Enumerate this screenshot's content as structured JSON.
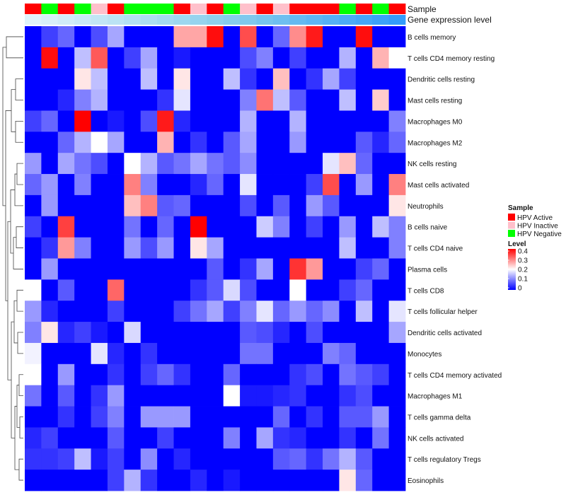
{
  "chart_data": {
    "type": "heatmap",
    "title": "",
    "annotation_titles": [
      "Sample",
      "Gene expression level"
    ],
    "rows": [
      "B cells memory",
      "T cells CD4 memory resting",
      "Dendritic cells resting",
      "Mast cells resting",
      "Macrophages M0",
      "Macrophages M2",
      "NK cells resting",
      "Mast cells activated",
      "Neutrophils",
      "B cells naive",
      "T cells CD4 naive",
      "Plasma cells",
      "T cells CD8",
      "T cells follicular helper",
      "Dendritic cells activated",
      "Monocytes",
      "T cells CD4 memory activated",
      "Macrophages M1",
      "T cells gamma delta",
      "NK cells activated",
      "T cells regulatory  Tregs",
      "Eosinophils"
    ],
    "column_samples": [
      "HPV Active",
      "HPV Negative",
      "HPV Active",
      "HPV Negative",
      "HPV Inactive",
      "HPV Active",
      "HPV Negative",
      "HPV Negative",
      "HPV Negative",
      "HPV Active",
      "HPV Inactive",
      "HPV Active",
      "HPV Negative",
      "HPV Inactive",
      "HPV Active",
      "HPV Inactive",
      "HPV Active",
      "HPV Active",
      "HPV Active",
      "HPV Negative",
      "HPV Active",
      "HPV Negative",
      "HPV Active"
    ],
    "expression_level": [
      0.02,
      0.06,
      0.1,
      0.14,
      0.18,
      0.22,
      0.26,
      0.3,
      0.34,
      0.38,
      0.42,
      0.46,
      0.5,
      0.54,
      0.58,
      0.62,
      0.66,
      0.7,
      0.74,
      0.78,
      0.82,
      0.86,
      0.9
    ],
    "values": [
      [
        0,
        0.05,
        0.08,
        0,
        0.06,
        0.13,
        0,
        0,
        0,
        0.27,
        0.27,
        0.39,
        0,
        0.34,
        0,
        0.08,
        0.29,
        0.38,
        0,
        0,
        0.39,
        0,
        0
      ],
      [
        0,
        0.39,
        0,
        0.15,
        0.33,
        0,
        0.05,
        0.13,
        0,
        0.02,
        0,
        0,
        0,
        0.06,
        0.1,
        0,
        0.05,
        0,
        0,
        0.14,
        0,
        0.26,
        0.2
      ],
      [
        0,
        0,
        0,
        0.22,
        0.15,
        0,
        0,
        0.15,
        0,
        0.22,
        0,
        0,
        0.15,
        0.04,
        0,
        0.25,
        0,
        0.04,
        0.13,
        0.05,
        0,
        0,
        0
      ],
      [
        0,
        0,
        0.03,
        0.1,
        0.14,
        0,
        0,
        0,
        0.04,
        0.18,
        0,
        0,
        0,
        0.1,
        0.31,
        0.15,
        0.07,
        0,
        0,
        0.15,
        0,
        0.24,
        0
      ],
      [
        0.05,
        0.08,
        0,
        0.4,
        0,
        0.02,
        0,
        0.06,
        0.38,
        0.03,
        0,
        0,
        0,
        0.14,
        0,
        0,
        0.14,
        0,
        0,
        0,
        0,
        0,
        0.1
      ],
      [
        0,
        0,
        0.08,
        0.14,
        0.2,
        0.13,
        0,
        0,
        0.26,
        0,
        0.04,
        0,
        0.07,
        0.13,
        0,
        0,
        0.12,
        0,
        0,
        0,
        0.07,
        0.03,
        0.08
      ],
      [
        0.12,
        0,
        0.13,
        0.09,
        0.06,
        0,
        0.2,
        0.14,
        0.07,
        0.09,
        0.13,
        0.09,
        0.07,
        0.11,
        0,
        0,
        0,
        0,
        0.18,
        0.25,
        0.08,
        0,
        0
      ],
      [
        0.08,
        0.12,
        0,
        0.1,
        0,
        0,
        0.3,
        0.1,
        0,
        0,
        0.03,
        0.08,
        0,
        0.18,
        0,
        0,
        0,
        0.05,
        0.34,
        0,
        0.12,
        0,
        0.3
      ],
      [
        0,
        0.12,
        0,
        0,
        0,
        0,
        0.25,
        0.3,
        0.07,
        0.08,
        0,
        0,
        0,
        0.06,
        0,
        0.07,
        0,
        0.12,
        0.07,
        0,
        0,
        0,
        0.22
      ],
      [
        0.05,
        0,
        0.35,
        0,
        0,
        0,
        0.09,
        0,
        0.08,
        0,
        0.4,
        0,
        0,
        0,
        0.16,
        0.1,
        0,
        0.05,
        0,
        0.12,
        0,
        0.15,
        0.1
      ],
      [
        0,
        0.04,
        0.28,
        0.1,
        0,
        0,
        0.12,
        0.06,
        0.12,
        0,
        0.22,
        0.13,
        0,
        0,
        0,
        0,
        0,
        0,
        0,
        0.15,
        0,
        0,
        0.1
      ],
      [
        0,
        0.12,
        0,
        0,
        0,
        0,
        0,
        0,
        0,
        0,
        0,
        0.07,
        0,
        0.04,
        0.13,
        0,
        0.36,
        0.28,
        0,
        0,
        0.05,
        0.08,
        0
      ],
      [
        0.2,
        0,
        0.07,
        0,
        0,
        0.32,
        0,
        0,
        0,
        0,
        0.04,
        0.07,
        0.17,
        0.06,
        0,
        0,
        0.2,
        0,
        0,
        0.05,
        0.08,
        0,
        0
      ],
      [
        0.12,
        0.03,
        0,
        0,
        0,
        0.05,
        0,
        0,
        0,
        0.05,
        0.09,
        0.13,
        0.05,
        0.1,
        0.18,
        0.08,
        0.12,
        0.08,
        0.11,
        0,
        0.15,
        0,
        0.18
      ],
      [
        0.1,
        0.22,
        0.03,
        0.05,
        0.02,
        0,
        0.17,
        0,
        0,
        0,
        0,
        0,
        0,
        0.07,
        0.06,
        0.03,
        0,
        0.06,
        0,
        0,
        0,
        0,
        0.13
      ],
      [
        0.19,
        0,
        0,
        0,
        0.18,
        0.03,
        0,
        0.04,
        0,
        0,
        0,
        0,
        0,
        0.09,
        0.09,
        0,
        0,
        0,
        0.1,
        0.08,
        0,
        0,
        0
      ],
      [
        0.2,
        0,
        0.12,
        0,
        0,
        0.04,
        0,
        0.05,
        0.08,
        0.04,
        0,
        0,
        0.08,
        0,
        0,
        0,
        0.04,
        0.06,
        0,
        0.09,
        0.07,
        0.05,
        0
      ],
      [
        0.09,
        0,
        0.07,
        0,
        0.04,
        0.12,
        0,
        0,
        0,
        0,
        0,
        0,
        0.2,
        0.02,
        0.02,
        0.03,
        0.04,
        0,
        0,
        0.04,
        0.06,
        0,
        0
      ],
      [
        0,
        0,
        0.04,
        0,
        0.05,
        0.1,
        0,
        0.12,
        0.12,
        0.12,
        0,
        0,
        0,
        0,
        0,
        0.08,
        0,
        0.04,
        0,
        0.07,
        0.07,
        0.12,
        0
      ],
      [
        0.03,
        0.05,
        0,
        0,
        0,
        0.07,
        0,
        0,
        0.05,
        0,
        0,
        0,
        0.1,
        0,
        0.13,
        0.04,
        0.03,
        0,
        0,
        0.04,
        0,
        0.09,
        0
      ],
      [
        0.04,
        0.04,
        0.05,
        0.15,
        0.02,
        0.05,
        0,
        0.11,
        0,
        0.03,
        0,
        0,
        0,
        0,
        0,
        0.07,
        0.08,
        0.04,
        0.09,
        0.14,
        0.07,
        0,
        0
      ],
      [
        0,
        0,
        0,
        0,
        0,
        0.05,
        0.14,
        0.04,
        0,
        0,
        0.03,
        0,
        0.02,
        0,
        0,
        0,
        0,
        0,
        0,
        0.22,
        0.08,
        0,
        0
      ]
    ],
    "legend_sample": {
      "title": "Sample",
      "entries": [
        {
          "label": "HPV Active",
          "color": "#ff0000"
        },
        {
          "label": "HPV Inactive",
          "color": "#ffc0cb"
        },
        {
          "label": "HPV Negative",
          "color": "#00ff00"
        }
      ]
    },
    "legend_level": {
      "title": "Level",
      "ticks": [
        "0",
        "0.1",
        "0.2",
        "0.3",
        "0.4"
      ],
      "range": [
        0,
        0.4
      ],
      "colors": [
        "#0000ff",
        "#ffffff",
        "#ff0000"
      ]
    },
    "expression_colors": [
      "#e3f3fb",
      "#87ceeb",
      "#1e90ff"
    ]
  }
}
